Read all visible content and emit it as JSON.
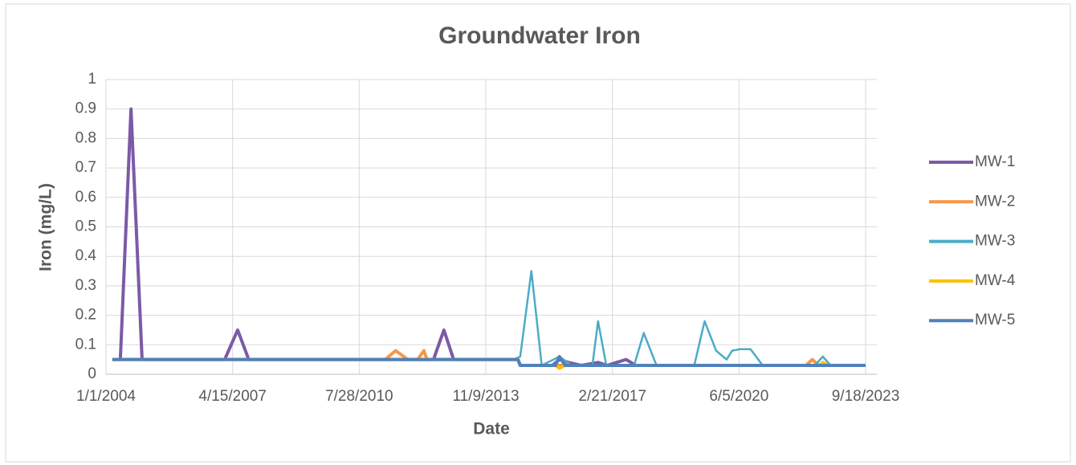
{
  "chart_data": {
    "type": "line",
    "title": "Groundwater Iron",
    "x_label": "Date",
    "y_label": "Iron (mg/L)",
    "xlim": [
      "1/1/2004",
      "9/18/2023"
    ],
    "xticks": [
      "1/1/2004",
      "4/15/2007",
      "7/28/2010",
      "11/9/2013",
      "2/21/2017",
      "6/5/2020",
      "9/18/2023"
    ],
    "ylim": [
      0,
      1
    ],
    "yticks": [
      0,
      0.1,
      0.2,
      0.3,
      0.4,
      0.5,
      0.6,
      0.7,
      0.8,
      0.9,
      1
    ],
    "grid": true,
    "legend": "right",
    "series": [
      {
        "name": "MW-1",
        "color": "#7b5aa6",
        "x": [
          "3/1/2004",
          "5/16/2004",
          "8/25/2004",
          "12/8/2004",
          "1/30/2007",
          "6/2/2007",
          "9/15/2007",
          "7/1/2012",
          "10/8/2012",
          "1/8/2013",
          "9/10/2014",
          "10/1/2014",
          "8/1/2015",
          "10/8/2015",
          "1/1/2016",
          "5/1/2016",
          "10/8/2016",
          "1/1/2017",
          "7/1/2017",
          "10/1/2017",
          "9/18/2023"
        ],
        "values": [
          0.05,
          0.05,
          0.9,
          0.05,
          0.05,
          0.15,
          0.05,
          0.05,
          0.15,
          0.05,
          0.05,
          0.03,
          0.03,
          0.05,
          0.04,
          0.03,
          0.04,
          0.03,
          0.05,
          0.03,
          0.03
        ]
      },
      {
        "name": "MW-2",
        "color": "#f79646",
        "x": [
          "3/1/2004",
          "4/1/2011",
          "7/8/2011",
          "11/1/2011",
          "2/1/2012",
          "4/1/2012",
          "5/1/2012",
          "9/10/2014",
          "10/1/2014",
          "3/1/2022",
          "5/1/2022",
          "7/1/2022",
          "9/18/2023"
        ],
        "values": [
          0.05,
          0.05,
          0.08,
          0.05,
          0.05,
          0.08,
          0.05,
          0.05,
          0.03,
          0.03,
          0.05,
          0.03,
          0.03
        ]
      },
      {
        "name": "MW-3",
        "color": "#4bacc6",
        "x": [
          "8/1/2014",
          "10/1/2014",
          "1/15/2015",
          "4/23/2015",
          "10/8/2015",
          "2/1/2016",
          "8/15/2016",
          "10/8/2016",
          "12/25/2016",
          "9/15/2017",
          "12/15/2017",
          "4/15/2018",
          "4/8/2019",
          "7/15/2019",
          "11/1/2019",
          "2/8/2020",
          "4/1/2020",
          "6/15/2020",
          "9/22/2020",
          "1/15/2021",
          "5/25/2022",
          "8/8/2022",
          "10/22/2022",
          "9/18/2023"
        ],
        "values": [
          0.05,
          0.06,
          0.35,
          0.03,
          0.06,
          0.03,
          0.03,
          0.18,
          0.03,
          0.03,
          0.14,
          0.03,
          0.03,
          0.18,
          0.08,
          0.05,
          0.08,
          0.085,
          0.085,
          0.03,
          0.03,
          0.06,
          0.03,
          0.03
        ]
      },
      {
        "name": "MW-4",
        "color": "#ffc000",
        "x": [
          "3/1/2004",
          "9/10/2014",
          "10/1/2014",
          "9/1/2015",
          "10/8/2015",
          "12/1/2015",
          "7/1/2022",
          "8/8/2022",
          "10/1/2022",
          "9/18/2023"
        ],
        "values": [
          0.05,
          0.05,
          0.03,
          0.03,
          0.02,
          0.03,
          0.03,
          0.04,
          0.03,
          0.03
        ]
      },
      {
        "name": "MW-5",
        "color": "#4f81bd",
        "x": [
          "3/1/2004",
          "9/10/2014",
          "10/1/2014",
          "9/1/2015",
          "10/8/2015",
          "12/1/2015",
          "9/18/2023"
        ],
        "values": [
          0.05,
          0.05,
          0.03,
          0.03,
          0.06,
          0.03,
          0.03
        ]
      }
    ]
  }
}
